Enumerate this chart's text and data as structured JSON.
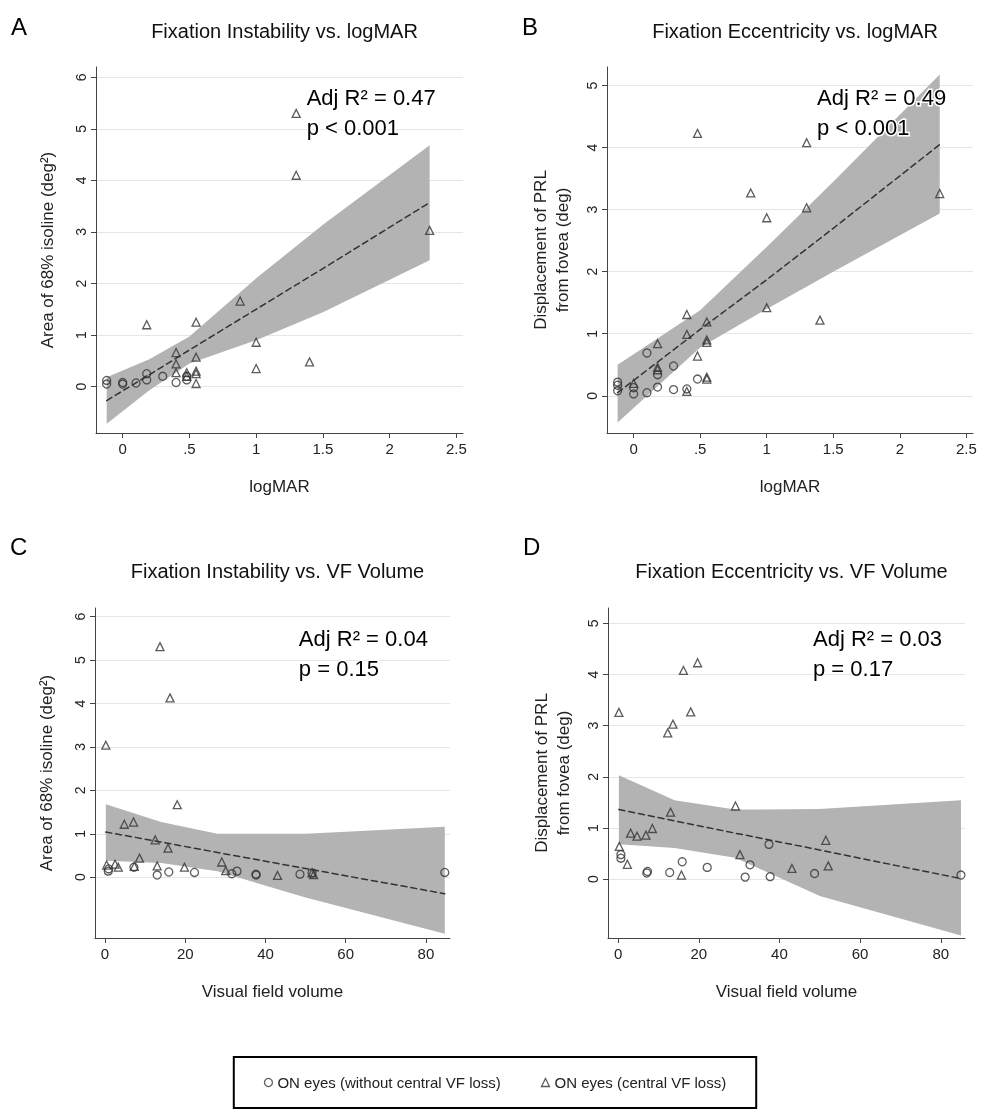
{
  "chart_data": [
    {
      "type": "scatter",
      "title": "Fixation Instability vs. logMAR",
      "xlabel": "logMAR",
      "ylabel": "Area of 68% isoline (deg²)",
      "annotations": [
        "A",
        "Adj R² = 0.47",
        "p < 0.001"
      ],
      "xlim": [
        -0.2,
        2.55
      ],
      "xticks": [
        0,
        {
          "value": 0.5,
          "label": ".5"
        },
        1,
        1.5,
        2,
        2.5
      ],
      "ylim": [
        -0.9,
        6.2
      ],
      "yticks": [
        0,
        1,
        2,
        3,
        4,
        5,
        6
      ],
      "grid": "y",
      "series": [
        {
          "type": "line",
          "color": "#333333",
          "marker": "none",
          "line_style": "dashed",
          "x": [
            -0.12,
            0.2,
            0.5,
            1.0,
            1.5,
            2.3
          ],
          "values": [
            -0.27,
            0.23,
            0.71,
            1.5,
            2.29,
            3.57
          ],
          "lower": [
            -0.72,
            -0.07,
            0.45,
            0.9,
            1.44,
            2.45
          ],
          "upper": [
            0.18,
            0.53,
            0.97,
            2.1,
            3.14,
            4.68
          ]
        },
        {
          "type": "scatter",
          "color": "#333333",
          "marker": "circle",
          "x": [
            -0.12,
            -0.12,
            0,
            0,
            0.1,
            0.18,
            0.18,
            0.3,
            0.4,
            0.48,
            0.48
          ],
          "values": [
            0.12,
            0.05,
            0.08,
            0.05,
            0.07,
            0.25,
            0.13,
            0.2,
            0.08,
            0.2,
            0.13
          ]
        },
        {
          "type": "scatter",
          "color": "#333333",
          "marker": "triangle",
          "x": [
            0.18,
            0.4,
            0.4,
            0.4,
            0.48,
            0.48,
            0.55,
            0.55,
            0.55,
            0.55,
            0.55,
            0.88,
            1.0,
            1.0,
            1.3,
            1.3,
            1.4,
            2.3
          ],
          "values": [
            1.2,
            0.66,
            0.44,
            0.27,
            0.27,
            0.2,
            1.25,
            0.57,
            0.3,
            0.25,
            0.06,
            1.66,
            0.86,
            0.35,
            5.3,
            4.1,
            0.48,
            3.03
          ]
        }
      ]
    },
    {
      "type": "scatter",
      "title": "Fixation Eccentricity vs. logMAR",
      "xlabel": "logMAR",
      "ylabel": "Displacement of PRL\nfrom fovea (deg)",
      "annotations": [
        "B",
        "Adj R² = 0.49",
        "p < 0.001"
      ],
      "xlim": [
        -0.2,
        2.55
      ],
      "xticks": [
        0,
        {
          "value": 0.5,
          "label": ".5"
        },
        1,
        1.5,
        2,
        2.5
      ],
      "ylim": [
        -0.6,
        5.3
      ],
      "yticks": [
        0,
        1,
        2,
        3,
        4,
        5
      ],
      "grid": "y",
      "series": [
        {
          "type": "line",
          "color": "#333333",
          "marker": "none",
          "line_style": "dashed",
          "x": [
            -0.12,
            0.5,
            1.0,
            1.5,
            2.3
          ],
          "values": [
            0.05,
            1.07,
            1.87,
            2.7,
            4.05
          ],
          "lower": [
            -0.43,
            0.78,
            1.4,
            2.0,
            2.94
          ],
          "upper": [
            0.5,
            1.38,
            2.4,
            3.45,
            5.18
          ]
        },
        {
          "type": "scatter",
          "color": "#333333",
          "marker": "circle",
          "x": [
            -0.12,
            -0.12,
            -0.12,
            0,
            0,
            0.1,
            0.1,
            0.18,
            0.18,
            0.3,
            0.3,
            0.4,
            0.48
          ],
          "values": [
            0.22,
            0.17,
            0.08,
            0.13,
            0.03,
            0.69,
            0.05,
            0.34,
            0.14,
            0.48,
            0.1,
            0.11,
            0.27
          ]
        },
        {
          "type": "scatter",
          "color": "#333333",
          "marker": "triangle",
          "x": [
            0,
            0.18,
            0.18,
            0.18,
            0.4,
            0.4,
            0.4,
            0.48,
            0.48,
            0.55,
            0.55,
            0.55,
            0.55,
            0.55,
            0.88,
            1.0,
            1.0,
            1.3,
            1.3,
            1.4,
            2.3
          ],
          "values": [
            0.2,
            0.84,
            0.46,
            0.42,
            1.31,
            0.99,
            0.07,
            4.23,
            0.64,
            1.19,
            0.9,
            0.86,
            0.3,
            0.27,
            3.27,
            2.87,
            1.42,
            4.08,
            3.03,
            1.22,
            3.26
          ]
        }
      ]
    },
    {
      "type": "scatter",
      "title": "Fixation Instability vs. VF Volume",
      "xlabel": "Visual field volume",
      "ylabel": "Area of 68% isoline (deg²)",
      "annotations": [
        "C",
        "Adj R² = 0.04",
        "p = 0.15"
      ],
      "xlim": [
        -2.5,
        86
      ],
      "xticks": [
        0,
        20,
        40,
        60,
        80
      ],
      "ylim": [
        -1.4,
        6.2
      ],
      "yticks": [
        0,
        1,
        2,
        3,
        4,
        5,
        6
      ],
      "grid": "y",
      "series": [
        {
          "type": "line",
          "color": "#333333",
          "marker": "none",
          "line_style": "dashed",
          "x": [
            0.2,
            14,
            28,
            50,
            84.7
          ],
          "values": [
            1.04,
            0.81,
            0.57,
            0.2,
            -0.38
          ],
          "lower": [
            0.38,
            0.33,
            0.14,
            -0.47,
            -1.3
          ],
          "upper": [
            1.68,
            1.27,
            1.0,
            1.0,
            1.16
          ]
        },
        {
          "type": "scatter",
          "color": "#333333",
          "marker": "circle",
          "x": [
            0.8,
            0.9,
            7.2,
            13,
            15.9,
            22.3,
            31.6,
            32.9,
            37.6,
            37.7,
            48.6,
            51.6,
            84.7
          ],
          "values": [
            0.14,
            0.19,
            0.23,
            0.05,
            0.12,
            0.11,
            0.08,
            0.14,
            0.07,
            0.05,
            0.07,
            0.1,
            0.11
          ]
        },
        {
          "type": "scatter",
          "color": "#333333",
          "marker": "triangle",
          "x": [
            0.2,
            13.7,
            16.2,
            18,
            0.4,
            2.5,
            3.3,
            4.8,
            7.1,
            7.3,
            8.6,
            12.5,
            13,
            15.7,
            19.8,
            29.1,
            30.1,
            43,
            51.6,
            52
          ],
          "values": [
            3.04,
            5.31,
            4.13,
            1.67,
            0.28,
            0.3,
            0.23,
            1.22,
            1.27,
            0.25,
            0.44,
            0.86,
            0.26,
            0.67,
            0.23,
            0.35,
            0.15,
            0.04,
            0.1,
            0.06
          ]
        }
      ]
    },
    {
      "type": "scatter",
      "title": "Fixation Eccentricity vs. VF Volume",
      "xlabel": "Visual field volume",
      "ylabel": "Displacement of PRL\nfrom fovea (deg)",
      "annotations": [
        "D",
        "Adj R² = 0.03",
        "p = 0.17"
      ],
      "xlim": [
        -2.5,
        86
      ],
      "xticks": [
        0,
        20,
        40,
        60,
        80
      ],
      "ylim": [
        -1.15,
        5.3
      ],
      "yticks": [
        0,
        1,
        2,
        3,
        4,
        5
      ],
      "grid": "y",
      "legend": "bottom",
      "series": [
        {
          "type": "line",
          "color": "#333333",
          "marker": "none",
          "line_style": "dashed",
          "x": [
            0.2,
            14,
            29,
            50,
            85
          ],
          "values": [
            1.36,
            1.14,
            0.9,
            0.57,
            0.01
          ],
          "lower": [
            0.68,
            0.61,
            0.42,
            -0.33,
            -1.1
          ],
          "upper": [
            2.03,
            1.54,
            1.36,
            1.37,
            1.54
          ]
        },
        {
          "type": "scatter",
          "name": "ON eyes (without central VF loss)",
          "color": "#333333",
          "marker": "circle",
          "x": [
            0.7,
            0.7,
            7.1,
            7.3,
            12.8,
            15.9,
            22.1,
            31.5,
            32.7,
            37.4,
            37.7,
            48.7,
            85
          ],
          "values": [
            0.48,
            0.41,
            0.12,
            0.15,
            0.13,
            0.34,
            0.23,
            0.04,
            0.28,
            0.68,
            0.05,
            0.11,
            0.08
          ]
        },
        {
          "type": "scatter",
          "name": "ON eyes (central VF loss)",
          "color": "#333333",
          "marker": "triangle",
          "x": [
            0.2,
            12.3,
            13.6,
            16.2,
            18,
            19.7,
            0.3,
            2.3,
            3.1,
            4.7,
            6.9,
            8.5,
            13,
            15.7,
            29.1,
            30.2,
            43.1,
            51.5,
            52.1
          ],
          "values": [
            3.26,
            2.86,
            3.03,
            4.08,
            3.27,
            4.23,
            0.64,
            0.29,
            0.9,
            0.84,
            0.86,
            0.99,
            1.31,
            0.08,
            1.43,
            0.48,
            0.21,
            0.76,
            0.26
          ]
        }
      ]
    }
  ]
}
